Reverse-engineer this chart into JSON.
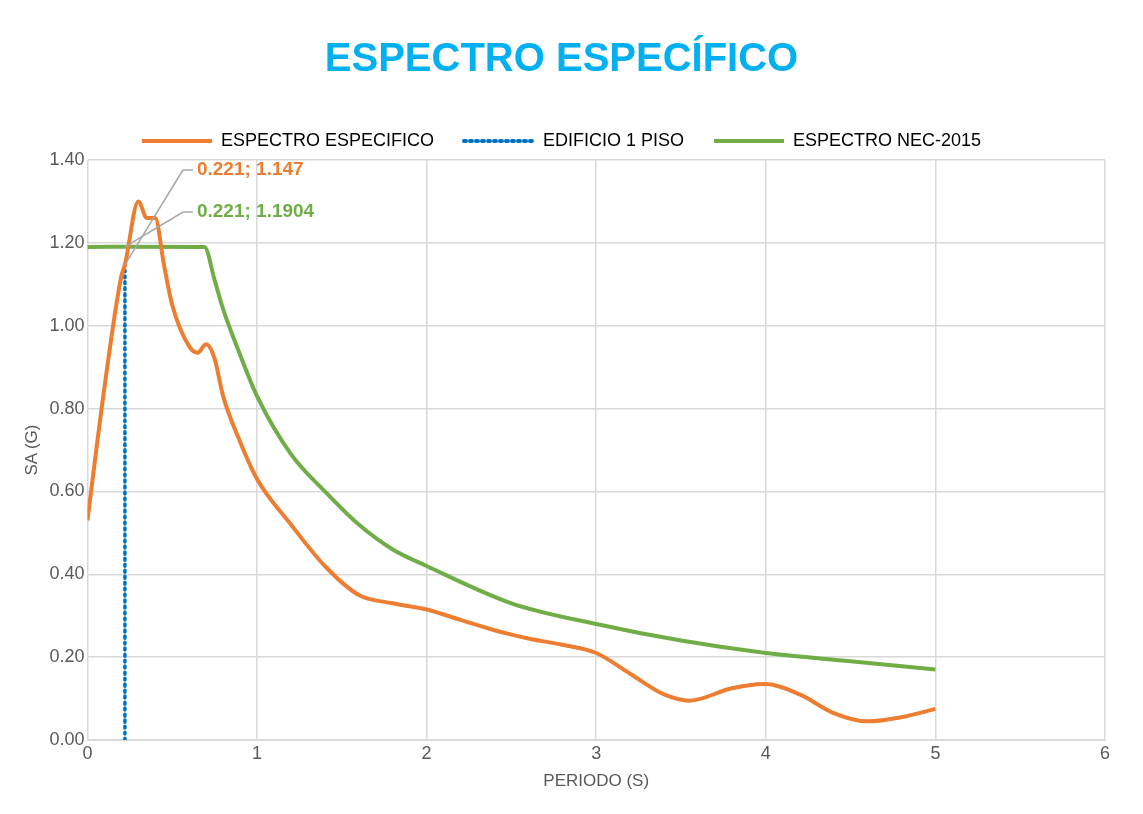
{
  "chart_data": {
    "type": "line",
    "title": "ESPECTRO ESPECÍFICO",
    "xlabel": "PERIODO (S)",
    "ylabel": "SA (G)",
    "xlim": [
      0,
      6
    ],
    "xticks": [
      0,
      1,
      2,
      3,
      4,
      5,
      6
    ],
    "ylim": [
      0,
      1.4
    ],
    "yticks": [
      {
        "value": 0,
        "label": "0.00"
      },
      {
        "value": 0.2,
        "label": "0.20"
      },
      {
        "value": 0.4,
        "label": "0.40"
      },
      {
        "value": 0.6,
        "label": "0.60"
      },
      {
        "value": 0.8,
        "label": "0.80"
      },
      {
        "value": 1,
        "label": "1.00"
      },
      {
        "value": 1.2,
        "label": "1.20"
      },
      {
        "value": 1.4,
        "label": "1.40"
      }
    ],
    "grid": true,
    "legend": "top",
    "marker": "none",
    "series": [
      {
        "name": "ESPECTRO ESPECIFICO",
        "color": "#ed7d31",
        "line_style": "solid",
        "x": [
          0,
          0.1,
          0.2,
          0.221,
          0.3,
          0.35,
          0.4,
          0.45,
          0.5,
          0.6,
          0.65,
          0.7,
          0.75,
          0.8,
          0.9,
          1.0,
          1.2,
          1.4,
          1.6,
          1.8,
          2.0,
          2.2,
          2.4,
          2.6,
          2.8,
          3.0,
          3.2,
          3.4,
          3.55,
          3.8,
          4.0,
          4.2,
          4.4,
          4.6,
          4.8,
          5.0
        ],
        "values": [
          0.53,
          0.85,
          1.12,
          1.147,
          1.3,
          1.26,
          1.26,
          1.15,
          1.05,
          0.95,
          0.935,
          0.955,
          0.92,
          0.83,
          0.72,
          0.63,
          0.52,
          0.42,
          0.35,
          0.33,
          0.315,
          0.29,
          0.265,
          0.245,
          0.23,
          0.21,
          0.16,
          0.11,
          0.095,
          0.125,
          0.135,
          0.11,
          0.065,
          0.045,
          0.055,
          0.075
        ]
      },
      {
        "name": "EDIFICIO 1 PISO",
        "color": "#0070c0",
        "line_style": "dotted",
        "x": [
          0.221,
          0.221
        ],
        "values": [
          0,
          1.147
        ]
      },
      {
        "name": "ESPECTRO NEC-2015",
        "color": "#70ad47",
        "line_style": "solid",
        "x": [
          0,
          0.221,
          0.69,
          0.75,
          0.8,
          0.9,
          1.0,
          1.2,
          1.4,
          1.6,
          1.8,
          2.0,
          2.5,
          3.0,
          3.5,
          4.0,
          4.5,
          5.0
        ],
        "values": [
          1.19,
          1.1904,
          1.19,
          1.11,
          1.04,
          0.93,
          0.83,
          0.69,
          0.6,
          0.52,
          0.46,
          0.42,
          0.33,
          0.28,
          0.24,
          0.21,
          0.19,
          0.17
        ]
      }
    ],
    "annotations": [
      {
        "text": "0.221; 1.147",
        "x": 0.221,
        "y": 1.147
      },
      {
        "text": "0.221; 1.1904",
        "x": 0.221,
        "y": 1.1904
      }
    ]
  }
}
